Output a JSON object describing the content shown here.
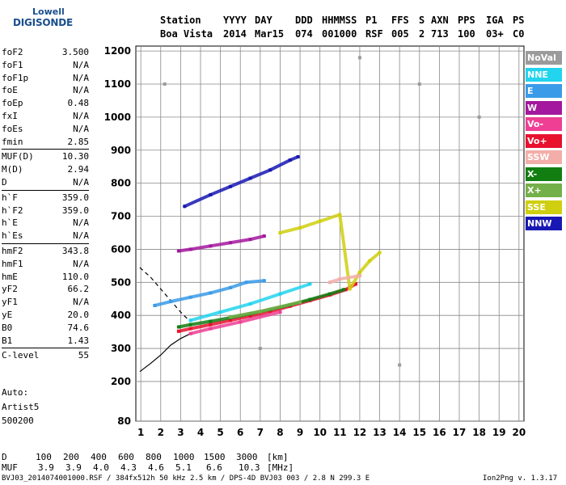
{
  "logo": {
    "line1": "Lowell",
    "line2": "DIGISONDE"
  },
  "header": {
    "labels": [
      "Station",
      "YYYY",
      "DAY",
      "DDD",
      "HHMMSS",
      "P1",
      "FFS",
      "S",
      "AXN",
      "PPS",
      "IGA",
      "PS"
    ],
    "values": [
      "Boa Vista",
      "2014",
      "Mar15",
      "074",
      "001000",
      "RSF",
      "005",
      "2",
      "713",
      "100",
      "03+",
      "C0"
    ]
  },
  "params": [
    {
      "k": "foF2",
      "v": "3.500"
    },
    {
      "k": "foF1",
      "v": "N/A"
    },
    {
      "k": "foF1p",
      "v": "N/A"
    },
    {
      "k": "foE",
      "v": "N/A"
    },
    {
      "k": "foEp",
      "v": "0.48"
    },
    {
      "k": "fxI",
      "v": "N/A"
    },
    {
      "k": "foEs",
      "v": "N/A"
    },
    {
      "k": "fmin",
      "v": "2.85"
    },
    {
      "k": "MUF(D)",
      "v": "10.30"
    },
    {
      "k": "M(D)",
      "v": "2.94"
    },
    {
      "k": "D",
      "v": "N/A"
    },
    {
      "k": "h`F",
      "v": "359.0"
    },
    {
      "k": "h`F2",
      "v": "359.0"
    },
    {
      "k": "h`E",
      "v": "N/A"
    },
    {
      "k": "h`Es",
      "v": "N/A"
    },
    {
      "k": "hmF2",
      "v": "343.8"
    },
    {
      "k": "hmF1",
      "v": "N/A"
    },
    {
      "k": "hmE",
      "v": "110.0"
    },
    {
      "k": "yF2",
      "v": "66.2"
    },
    {
      "k": "yF1",
      "v": "N/A"
    },
    {
      "k": "yE",
      "v": "20.0"
    },
    {
      "k": "B0",
      "v": "74.6"
    },
    {
      "k": "B1",
      "v": "1.43"
    },
    {
      "k": "C-level",
      "v": "55"
    }
  ],
  "auto": {
    "line1": "Auto:",
    "line2": "Artist5",
    "line3": "500200"
  },
  "legend": [
    {
      "label": "NoVal",
      "color": "#9b9b9b"
    },
    {
      "label": "NNE",
      "color": "#22d4ee"
    },
    {
      "label": "E",
      "color": "#3a9be8"
    },
    {
      "label": "W",
      "color": "#a3189e"
    },
    {
      "label": "Vo-",
      "color": "#ee3f94"
    },
    {
      "label": "Vo+",
      "color": "#e8112e"
    },
    {
      "label": "SSW",
      "color": "#f3aea9"
    },
    {
      "label": "X-",
      "color": "#127e12"
    },
    {
      "label": "X+",
      "color": "#74b04a"
    },
    {
      "label": "SSE",
      "color": "#cfcf10"
    },
    {
      "label": "NNW",
      "color": "#1818b4"
    }
  ],
  "muf_table": {
    "d_label": "D",
    "d_values": [
      "100",
      "200",
      "400",
      "600",
      "800",
      "1000",
      "1500",
      "3000"
    ],
    "d_unit": "[km]",
    "muf_label": "MUF",
    "muf_values": [
      "3.9",
      "3.9",
      "4.0",
      "4.3",
      "4.6",
      "5.1",
      "6.6",
      "10.3"
    ],
    "muf_unit": "[MHz]"
  },
  "footer": {
    "left": "BVJ03_2014074001000.RSF / 384fx512h 50 kHz 2.5 km / DPS-4D BVJ03 003 / 2.8 N 299.3 E",
    "right": "Ion2Png v. 1.3.17"
  },
  "chart_data": {
    "type": "scatter",
    "x_ticks": [
      1,
      2,
      3,
      4,
      5,
      6,
      7,
      8,
      9,
      10,
      11,
      12,
      13,
      14,
      15,
      16,
      17,
      18,
      19,
      20
    ],
    "y_ticks": [
      80,
      200,
      300,
      400,
      500,
      600,
      700,
      800,
      900,
      1000,
      1100,
      1200
    ],
    "xlim": [
      0.75,
      20.25
    ],
    "ylim": [
      80,
      1215
    ],
    "grid": true,
    "legend_position": "right",
    "series": [
      {
        "name": "Vo+",
        "color": "#e8112e",
        "points": [
          [
            2.9,
            352
          ],
          [
            3.5,
            360
          ],
          [
            4.5,
            372
          ],
          [
            5.5,
            385
          ],
          [
            6.5,
            398
          ],
          [
            7.5,
            412
          ],
          [
            8.5,
            428
          ],
          [
            9.5,
            445
          ],
          [
            10.5,
            462
          ],
          [
            11.3,
            478
          ],
          [
            11.8,
            495
          ]
        ]
      },
      {
        "name": "X-",
        "color": "#127e12",
        "points": [
          [
            2.9,
            365
          ],
          [
            3.5,
            372
          ],
          [
            4.5,
            382
          ],
          [
            5.5,
            393
          ],
          [
            6.5,
            405
          ],
          [
            7.5,
            418
          ],
          [
            8.5,
            432
          ],
          [
            9.5,
            448
          ],
          [
            10.5,
            465
          ],
          [
            11.2,
            478
          ]
        ]
      },
      {
        "name": "E",
        "color": "#3a9be8",
        "points": [
          [
            1.7,
            430
          ],
          [
            2.5,
            442
          ],
          [
            3.5,
            455
          ],
          [
            4.5,
            468
          ],
          [
            5.5,
            484
          ],
          [
            6.3,
            500
          ],
          [
            7.2,
            505
          ]
        ]
      },
      {
        "name": "NNE",
        "color": "#22d4ee",
        "points": [
          [
            3.5,
            385
          ],
          [
            5,
            410
          ],
          [
            6.5,
            435
          ],
          [
            8,
            465
          ],
          [
            9.5,
            495
          ]
        ]
      },
      {
        "name": "NNW",
        "color": "#1818b4",
        "points": [
          [
            3.2,
            730
          ],
          [
            4.5,
            765
          ],
          [
            5.5,
            790
          ],
          [
            6.5,
            815
          ],
          [
            7.5,
            840
          ],
          [
            8.5,
            870
          ],
          [
            8.9,
            880
          ]
        ]
      },
      {
        "name": "SSE",
        "color": "#cfcf10",
        "points": [
          [
            8,
            650
          ],
          [
            9,
            665
          ],
          [
            10,
            685
          ],
          [
            11,
            705
          ],
          [
            11.5,
            480
          ],
          [
            12,
            530
          ],
          [
            12.5,
            565
          ],
          [
            13,
            590
          ]
        ]
      },
      {
        "name": "W",
        "color": "#a3189e",
        "points": [
          [
            2.9,
            595
          ],
          [
            3.5,
            600
          ],
          [
            4.5,
            610
          ],
          [
            5.5,
            620
          ],
          [
            6.5,
            630
          ],
          [
            7.2,
            640
          ]
        ]
      },
      {
        "name": "Vo-",
        "color": "#ee3f94",
        "points": [
          [
            3.5,
            345
          ],
          [
            4.5,
            360
          ],
          [
            6,
            380
          ],
          [
            8,
            410
          ]
        ]
      },
      {
        "name": "X+",
        "color": "#74b04a",
        "points": [
          [
            5.5,
            395
          ],
          [
            7,
            412
          ],
          [
            9,
            440
          ]
        ]
      },
      {
        "name": "SSW",
        "color": "#f3aea9",
        "points": [
          [
            10.5,
            500
          ],
          [
            11,
            510
          ],
          [
            12,
            520
          ]
        ]
      },
      {
        "name": "NoVal",
        "color": "#9b9b9b",
        "points": [
          [
            2.2,
            1100
          ],
          [
            12,
            1180
          ],
          [
            15,
            1100
          ],
          [
            18,
            1000
          ],
          [
            7,
            300
          ],
          [
            14,
            250
          ]
        ]
      }
    ],
    "profile_curve": [
      [
        0.95,
        230
      ],
      [
        1.5,
        255
      ],
      [
        2,
        280
      ],
      [
        2.5,
        310
      ],
      [
        3,
        330
      ],
      [
        3.5,
        345
      ]
    ],
    "dashed_curve": [
      [
        0.95,
        545
      ],
      [
        1.5,
        515
      ],
      [
        2,
        480
      ],
      [
        2.5,
        445
      ],
      [
        3,
        410
      ],
      [
        3.5,
        380
      ]
    ]
  }
}
